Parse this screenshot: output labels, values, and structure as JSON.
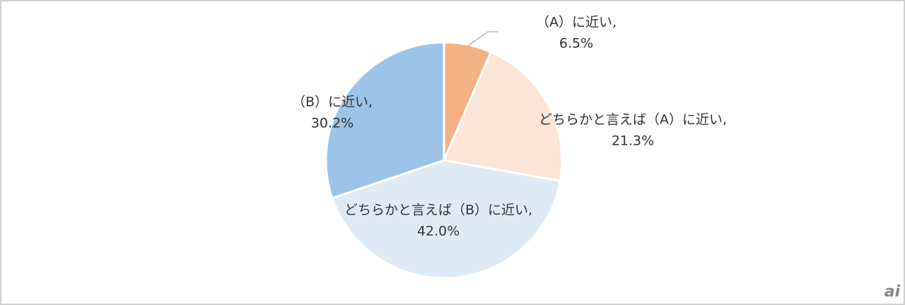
{
  "chart_data": {
    "type": "pie",
    "categories": [
      "（A）に近い,",
      "どちらかと言えば（A）に近い,",
      "どちらかと言えば（B）に近い,",
      "（B）に近い,"
    ],
    "values": [
      6.5,
      21.3,
      42.0,
      30.2
    ],
    "value_labels": [
      "6.5%",
      "21.3%",
      "42.0%",
      "30.2%"
    ],
    "colors": [
      "#f4b183",
      "#fbe5d6",
      "#deebf7",
      "#9dc3e6"
    ]
  },
  "watermark": "ai"
}
